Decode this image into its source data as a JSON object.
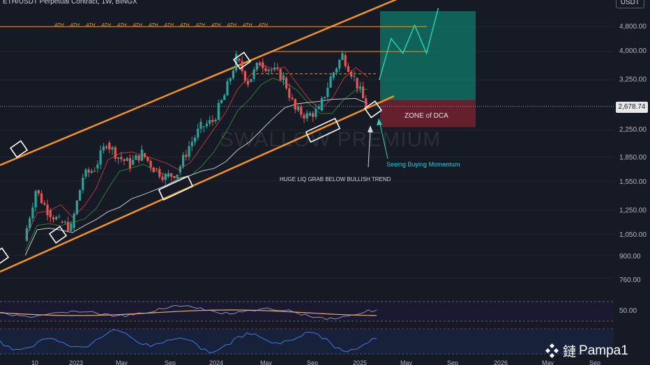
{
  "header": {
    "title": "ETH/USDT Perpetual Contract, 1W, BINGX",
    "currency_button": "USDT"
  },
  "price_axis": {
    "current_price": "2,678.74",
    "ticks": [
      "4,800.00",
      "4,000.00",
      "3,250.00",
      "2,250.00",
      "1,850.00",
      "1,550.00",
      "1,250.00",
      "1,050.00",
      "900.00",
      "760.00"
    ],
    "oscillator_tick": "50.00"
  },
  "time_axis": {
    "ticks": [
      "10",
      "2023",
      "May",
      "Sep",
      "2024",
      "May",
      "Sep",
      "2025",
      "May",
      "Sep",
      "2026",
      "May",
      "Sep"
    ]
  },
  "annotations": {
    "ath_label": "ATH",
    "ath_count": 14,
    "zone": "ZONE of DCA",
    "liq_grab": "HUGE LIQ GRAB BELOW BULLISH TREND",
    "momentum": "Seeing Buying Momentum",
    "watermark": "SWALLOW PREMIUM",
    "brand": "Pampa1",
    "brand_glyph": "鏈"
  },
  "colors": {
    "background": "#161a25",
    "up": "#26a69a",
    "down": "#ef5350",
    "channel": "#f7931a",
    "profit_zone": "#0f7a68",
    "loss_zone": "#7a2030",
    "projection": "#26d0b0"
  },
  "chart_data": {
    "type": "candlestick",
    "title": "ETH/USDT Perpetual Contract, 1W, BINGX",
    "scale": "log",
    "ylim": [
      700,
      5200
    ],
    "x_range": [
      "2022-10",
      "2026-10"
    ],
    "last_price": 2678.74,
    "ath_level": 4800,
    "resistance_level": 4000,
    "dashed_level": 3400,
    "dca_zone": [
      2300,
      2800
    ],
    "target_zone": [
      2800,
      5200
    ],
    "projected_path": [
      {
        "x": "2025-03",
        "y": 3250
      },
      {
        "x": "2025-04",
        "y": 4400
      },
      {
        "x": "2025-05",
        "y": 3950
      },
      {
        "x": "2025-06",
        "y": 4850
      },
      {
        "x": "2025-07",
        "y": 3950
      },
      {
        "x": "2025-08",
        "y": 5500
      }
    ],
    "price_path": [
      {
        "x": "2022-09",
        "y": 1000
      },
      {
        "x": "2022-10",
        "y": 1450
      },
      {
        "x": "2022-11",
        "y": 1250
      },
      {
        "x": "2022-12",
        "y": 1150
      },
      {
        "x": "2023-01",
        "y": 1100
      },
      {
        "x": "2023-02",
        "y": 1600
      },
      {
        "x": "2023-03",
        "y": 1700
      },
      {
        "x": "2023-04",
        "y": 2050
      },
      {
        "x": "2023-05",
        "y": 1850
      },
      {
        "x": "2023-06",
        "y": 1750
      },
      {
        "x": "2023-07",
        "y": 1900
      },
      {
        "x": "2023-08",
        "y": 1700
      },
      {
        "x": "2023-09",
        "y": 1600
      },
      {
        "x": "2023-10",
        "y": 1650
      },
      {
        "x": "2023-11",
        "y": 2000
      },
      {
        "x": "2023-12",
        "y": 2300
      },
      {
        "x": "2024-01",
        "y": 2400
      },
      {
        "x": "2024-02",
        "y": 2900
      },
      {
        "x": "2024-03",
        "y": 3800
      },
      {
        "x": "2024-04",
        "y": 3200
      },
      {
        "x": "2024-05",
        "y": 3700
      },
      {
        "x": "2024-06",
        "y": 3500
      },
      {
        "x": "2024-07",
        "y": 3300
      },
      {
        "x": "2024-08",
        "y": 2600
      },
      {
        "x": "2024-09",
        "y": 2500
      },
      {
        "x": "2024-10",
        "y": 2600
      },
      {
        "x": "2024-11",
        "y": 3300
      },
      {
        "x": "2024-12",
        "y": 3900
      },
      {
        "x": "2025-01",
        "y": 3300
      },
      {
        "x": "2025-02",
        "y": 2680
      }
    ],
    "channel_upper": [
      {
        "x": "2022-10",
        "y": 1950
      },
      {
        "x": "2025-06",
        "y": 6200
      }
    ],
    "channel_lower": [
      {
        "x": "2022-10",
        "y": 900
      },
      {
        "x": "2025-03",
        "y": 2750
      }
    ],
    "indicators": [
      "RSI",
      "Stochastic RSI"
    ],
    "oscillator_level": 50
  }
}
